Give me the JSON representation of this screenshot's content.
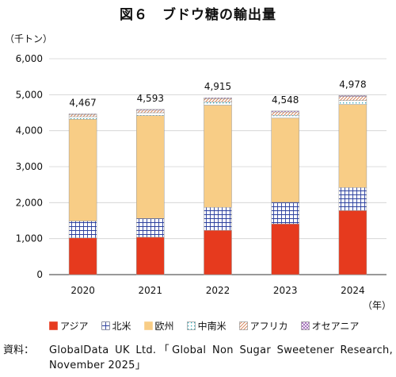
{
  "page": {
    "title": "図６　ブドウ糖の輸出量",
    "unit": "（千トン）",
    "x_unit": "（年）",
    "source_label": "資料：",
    "source_text": "GlobalData UK Ltd.「Global Non Sugar Sweetener Research, November 2025」"
  },
  "chart_data": {
    "type": "bar",
    "stacked": true,
    "title": "図６　ブドウ糖の輸出量",
    "xlabel": "（年）",
    "ylabel": "（千トン）",
    "ylim": [
      0,
      6000
    ],
    "yticks": [
      0,
      1000,
      2000,
      3000,
      4000,
      5000,
      6000
    ],
    "ytick_labels": [
      "0",
      "1,000",
      "2,000",
      "3,000",
      "4,000",
      "5,000",
      "6,000"
    ],
    "categories": [
      "2020",
      "2021",
      "2022",
      "2023",
      "2024"
    ],
    "totals": [
      4467,
      4593,
      4915,
      4548,
      4978
    ],
    "total_labels": [
      "4,467",
      "4,593",
      "4,915",
      "4,548",
      "4,978"
    ],
    "series": [
      {
        "name": "アジア",
        "color": "#e63a1e",
        "pattern": "solid",
        "values": [
          1020,
          1040,
          1230,
          1410,
          1780
        ]
      },
      {
        "name": "北米",
        "color": "#2b3f9e",
        "pattern": "grid",
        "values": [
          470,
          520,
          640,
          600,
          640
        ]
      },
      {
        "name": "欧州",
        "color": "#f8cd86",
        "pattern": "solid",
        "values": [
          2830,
          2860,
          2840,
          2340,
          2310
        ]
      },
      {
        "name": "中南米",
        "color": "#2aa7b6",
        "pattern": "dots",
        "values": [
          70,
          80,
          90,
          80,
          110
        ]
      },
      {
        "name": "アフリカ",
        "color": "#d77a4a",
        "pattern": "diagonal",
        "values": [
          60,
          70,
          90,
          90,
          110
        ]
      },
      {
        "name": "オセアニア",
        "color": "#8b4aa8",
        "pattern": "cross",
        "values": [
          17,
          23,
          25,
          28,
          28
        ]
      }
    ],
    "grid": true,
    "legend": "bottom"
  }
}
